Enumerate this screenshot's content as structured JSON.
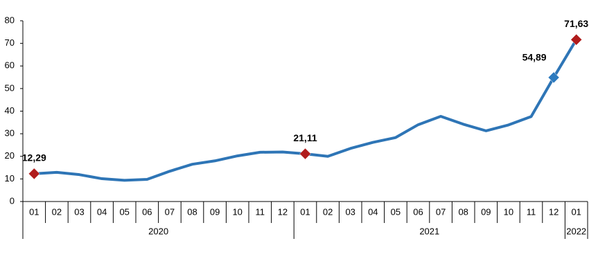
{
  "chart_data": {
    "type": "line",
    "groups": [
      {
        "name": "2020",
        "categories": [
          "01",
          "02",
          "03",
          "04",
          "05",
          "06",
          "07",
          "08",
          "09",
          "10",
          "11",
          "12"
        ]
      },
      {
        "name": "2021",
        "categories": [
          "01",
          "02",
          "03",
          "04",
          "05",
          "06",
          "07",
          "08",
          "09",
          "10",
          "11",
          "12"
        ]
      },
      {
        "name": "2022",
        "categories": [
          "01"
        ]
      }
    ],
    "values": [
      12.29,
      12.9,
      11.9,
      10.1,
      9.4,
      9.8,
      13.4,
      16.5,
      18.0,
      20.2,
      21.8,
      21.9,
      21.11,
      20.0,
      23.5,
      26.2,
      28.3,
      34.0,
      37.7,
      34.2,
      31.3,
      33.9,
      37.6,
      54.89,
      71.63
    ],
    "value_labels": [
      "12,29",
      null,
      null,
      null,
      null,
      null,
      null,
      null,
      null,
      null,
      null,
      null,
      "21,11",
      null,
      null,
      null,
      null,
      null,
      null,
      null,
      null,
      null,
      null,
      "54,89",
      "71,63"
    ],
    "marker_colors": [
      "#b01c1c",
      null,
      null,
      null,
      null,
      null,
      null,
      null,
      null,
      null,
      null,
      null,
      "#b01c1c",
      null,
      null,
      null,
      null,
      null,
      null,
      null,
      null,
      null,
      null,
      "#2e7bbf",
      "#b01c1c"
    ],
    "color": "#2e75b6",
    "ylim": [
      0,
      80
    ],
    "yticks": [
      0,
      10,
      20,
      30,
      40,
      50,
      60,
      70,
      80
    ]
  }
}
